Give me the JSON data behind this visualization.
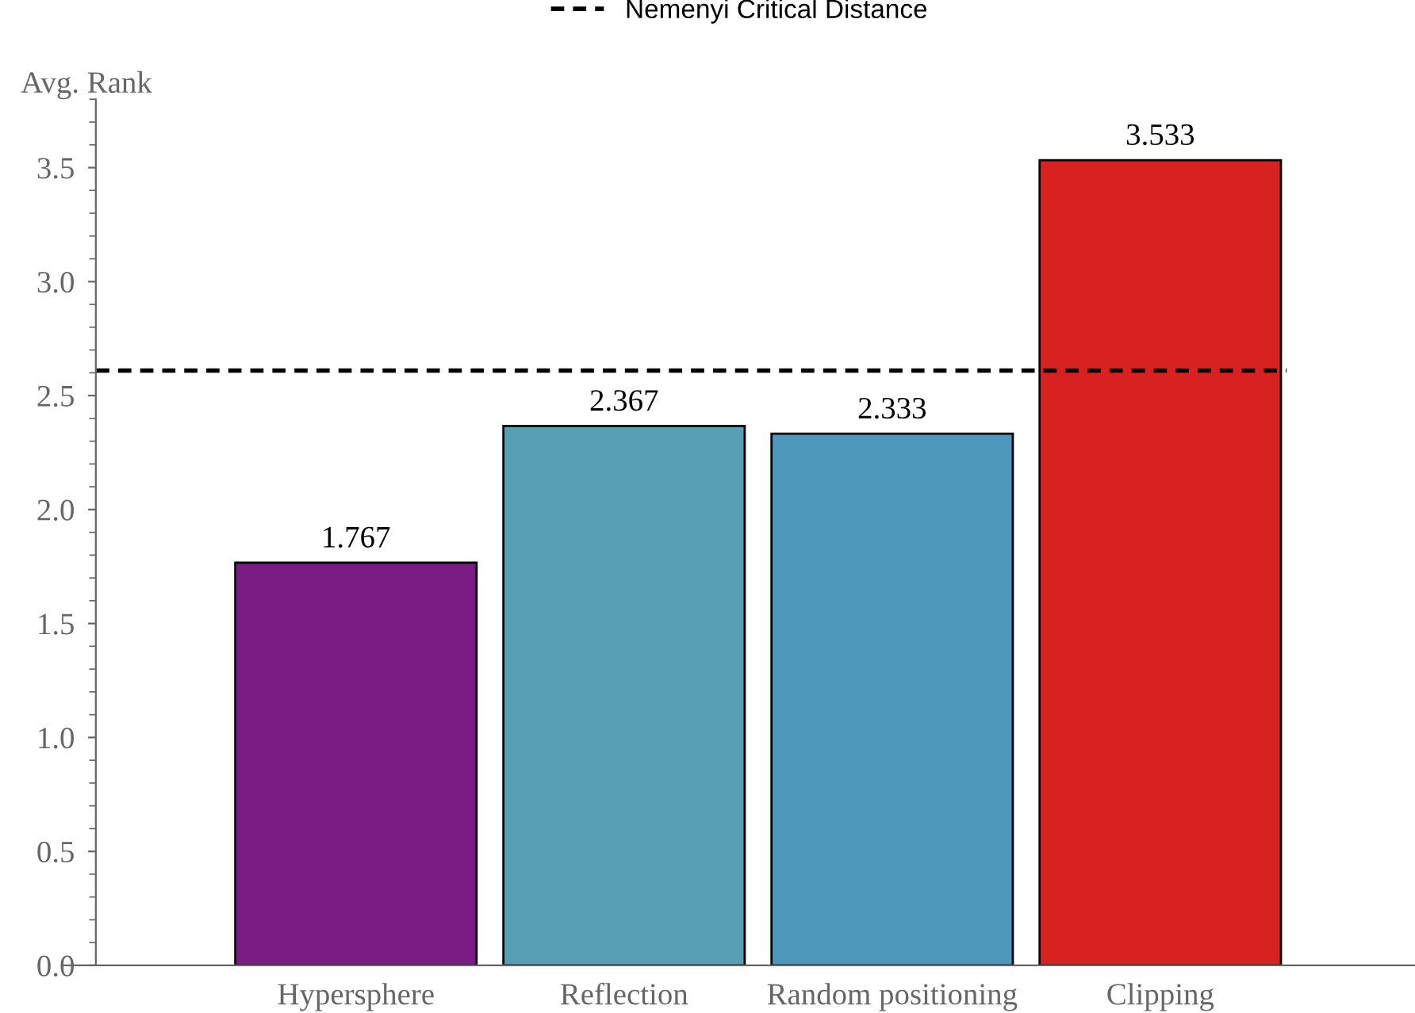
{
  "chart_data": {
    "type": "bar",
    "ylabel": "Avg. Rank",
    "categories": [
      "Hypersphere",
      "Reflection",
      "Random positioning",
      "Clipping"
    ],
    "values": [
      1.767,
      2.367,
      2.333,
      3.533
    ],
    "colors": [
      "#7b1c85",
      "#569fb5",
      "#4d97bb",
      "#d82222"
    ],
    "data_labels": true,
    "ylim": [
      0,
      3.8
    ],
    "yticks": [
      {
        "value": 0,
        "label": "0.0"
      },
      {
        "value": 0.5,
        "label": "0.5"
      },
      {
        "value": 1,
        "label": "1.0"
      },
      {
        "value": 1.5,
        "label": "1.5"
      },
      {
        "value": 2,
        "label": "2.0"
      },
      {
        "value": 2.5,
        "label": "2.5"
      },
      {
        "value": 3,
        "label": "3.0"
      },
      {
        "value": 3.5,
        "label": "3.5"
      }
    ],
    "ref_lines": [
      {
        "axis": "y",
        "value": 2.61,
        "label": "Nemenyi Critical Distance",
        "color": "#000000",
        "line_style": "dashed"
      }
    ],
    "grid": false,
    "legend": "top"
  }
}
